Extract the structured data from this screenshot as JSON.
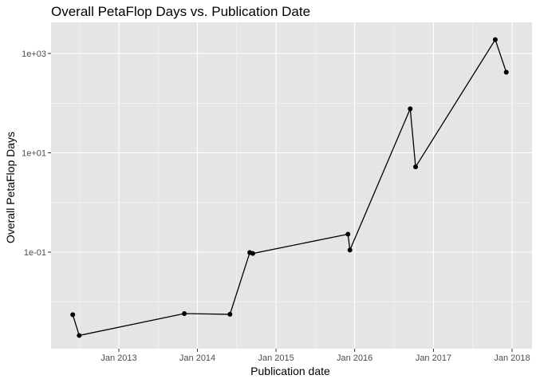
{
  "chart_data": {
    "type": "line",
    "title": "Overall PetaFlop Days vs. Publication Date",
    "xlabel": "Publication date",
    "ylabel": "Overall PetaFlop Days",
    "y_scale": "log10",
    "x_ticks": [
      "Jan 2013",
      "Jan 2014",
      "Jan 2015",
      "Jan 2016",
      "Jan 2017",
      "Jan 2018"
    ],
    "y_ticks": [
      "1e-01",
      "1e+01",
      "1e+03"
    ],
    "grid": true,
    "legend": "none",
    "colors": {
      "panel": "#e5e5e5",
      "grid_major": "#ffffff",
      "series": "#000000",
      "tick_label": "#4d4d4d"
    },
    "series": [
      {
        "points": [
          {
            "x": "2012-06-01",
            "y": 0.0055
          },
          {
            "x": "2012-07-01",
            "y": 0.0021
          },
          {
            "x": "2013-11-01",
            "y": 0.0058
          },
          {
            "x": "2014-06-01",
            "y": 0.0056
          },
          {
            "x": "2014-09-01",
            "y": 0.098
          },
          {
            "x": "2014-09-15",
            "y": 0.094
          },
          {
            "x": "2015-12-01",
            "y": 0.23
          },
          {
            "x": "2015-12-10",
            "y": 0.11
          },
          {
            "x": "2016-09-15",
            "y": 77
          },
          {
            "x": "2016-10-10",
            "y": 5.2
          },
          {
            "x": "2017-10-15",
            "y": 1900
          },
          {
            "x": "2017-12-05",
            "y": 420
          }
        ]
      }
    ]
  }
}
